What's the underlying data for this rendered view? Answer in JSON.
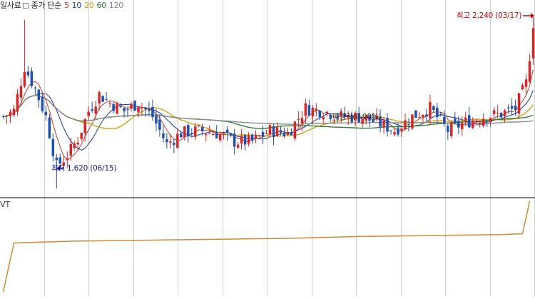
{
  "legend": {
    "title": "일사료",
    "label": "종가 단순",
    "periods": [
      {
        "text": "5",
        "color": "#c0392b"
      },
      {
        "text": "10",
        "color": "#1f3a93"
      },
      {
        "text": "20",
        "color": "#d4a017"
      },
      {
        "text": "60",
        "color": "#2e7d32"
      },
      {
        "text": "120",
        "color": "#888888"
      }
    ]
  },
  "annotations": {
    "high": "최고 2,240 (03/17)",
    "low": "최저 1,620 (06/15)",
    "dividend": "배당락(0.00%)"
  },
  "volume_label": "VT",
  "colors": {
    "up": "#d62728",
    "down": "#1f4fb0",
    "ma5": "#c0392b",
    "ma10": "#1f3a93",
    "ma20": "#d4a017",
    "ma60": "#2e7d32",
    "ma120": "#8c8c8c",
    "vt": "#c98a3c",
    "grid": "#d0d0d0"
  },
  "chart_data": {
    "type": "candlestick",
    "price_range": [
      1600,
      2260
    ],
    "high_value": 2240,
    "low_value": 1620,
    "candles_count": 150,
    "approx_close_path": [
      [
        0,
        1880
      ],
      [
        3,
        1900
      ],
      [
        6,
        2060
      ],
      [
        9,
        1980
      ],
      [
        12,
        1880
      ],
      [
        15,
        1700
      ],
      [
        18,
        1740
      ],
      [
        21,
        1800
      ],
      [
        24,
        1900
      ],
      [
        27,
        1960
      ],
      [
        30,
        1930
      ],
      [
        34,
        1900
      ],
      [
        38,
        1930
      ],
      [
        42,
        1880
      ],
      [
        46,
        1780
      ],
      [
        50,
        1820
      ],
      [
        55,
        1830
      ],
      [
        60,
        1820
      ],
      [
        65,
        1790
      ],
      [
        70,
        1790
      ],
      [
        75,
        1830
      ],
      [
        80,
        1820
      ],
      [
        85,
        1910
      ],
      [
        90,
        1900
      ],
      [
        95,
        1880
      ],
      [
        100,
        1880
      ],
      [
        105,
        1860
      ],
      [
        110,
        1830
      ],
      [
        115,
        1880
      ],
      [
        120,
        1910
      ],
      [
        125,
        1830
      ],
      [
        130,
        1860
      ],
      [
        135,
        1880
      ],
      [
        140,
        1890
      ],
      [
        144,
        1910
      ],
      [
        147,
        2000
      ],
      [
        149,
        2200
      ]
    ],
    "vt_series": {
      "description": "cumulative volume indicator",
      "points": [
        [
          0,
          0.02
        ],
        [
          3,
          0.55
        ],
        [
          20,
          0.57
        ],
        [
          40,
          0.58
        ],
        [
          80,
          0.6
        ],
        [
          100,
          0.62
        ],
        [
          140,
          0.64
        ],
        [
          146,
          0.65
        ],
        [
          148,
          1.0
        ]
      ]
    }
  }
}
